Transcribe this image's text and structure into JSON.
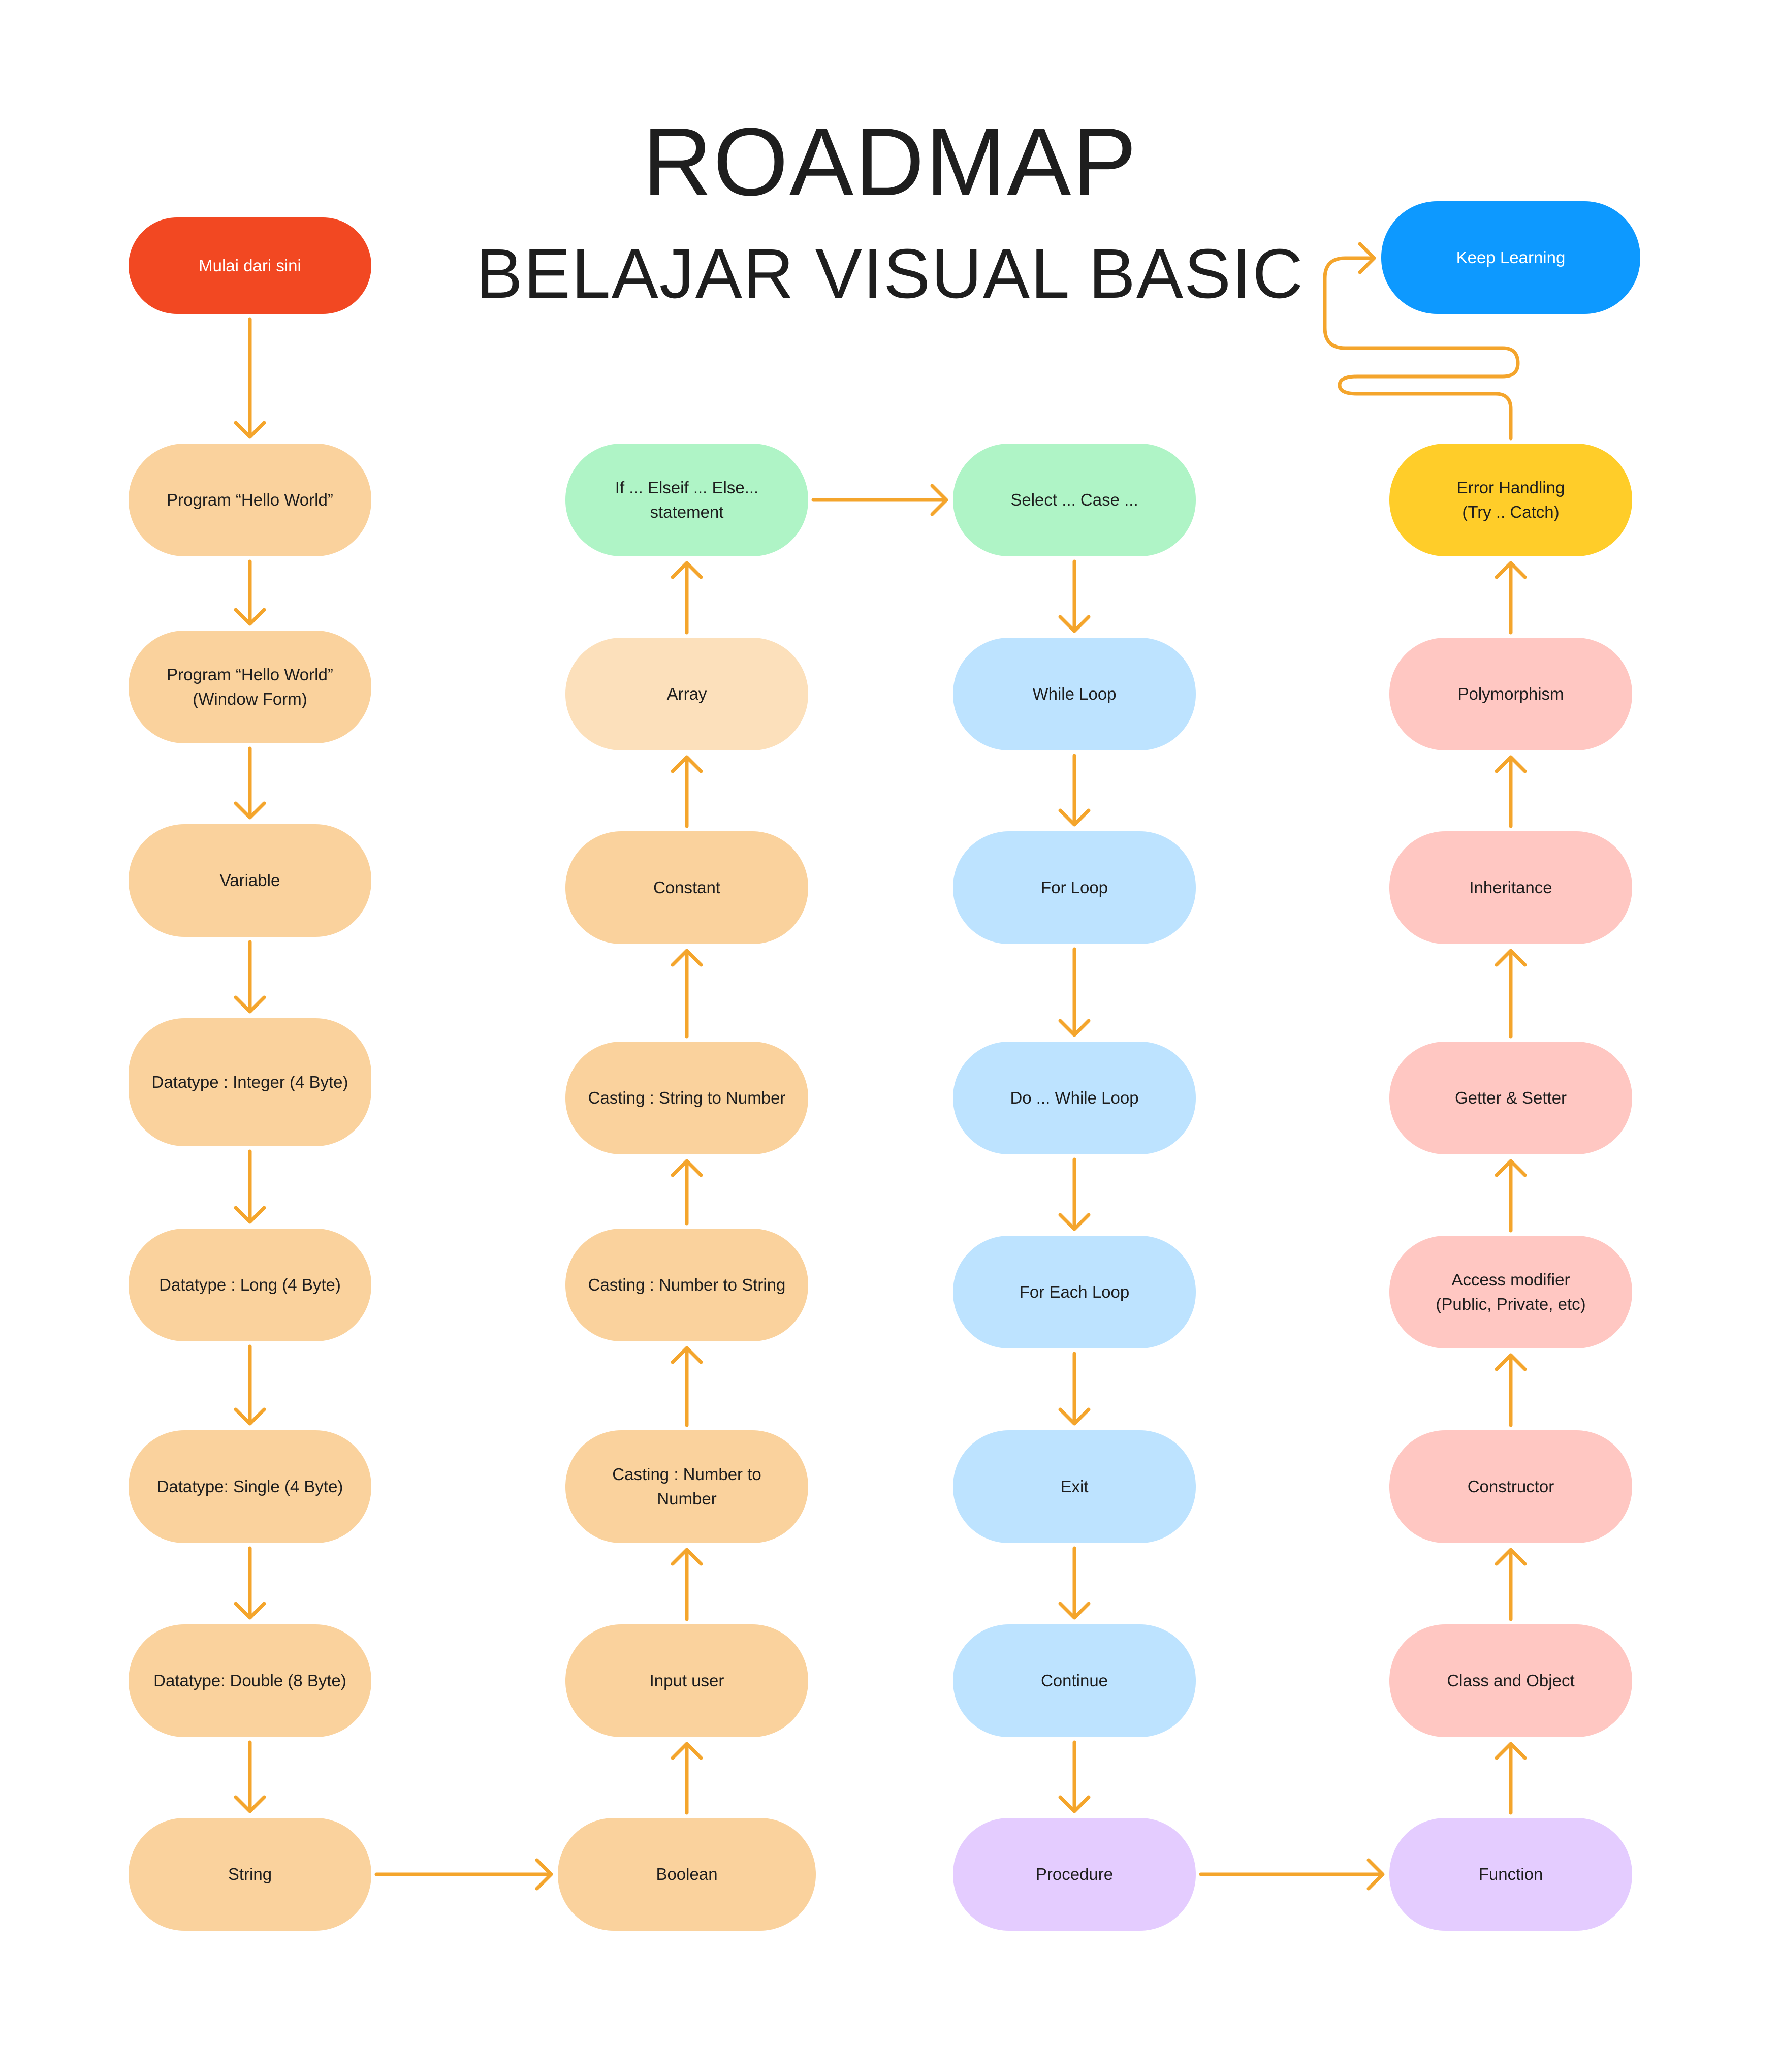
{
  "title": "ROADMAP",
  "subtitle": "BELAJAR VISUAL BASIC",
  "colors": {
    "arrow": "#f4a52c",
    "start": "#f24822",
    "basic": "#fad29d",
    "basic_light": "#fce0bb",
    "decision": "#aff4c6",
    "loop": "#bde3ff",
    "procedure": "#e4ccff",
    "oop": "#ffc7c2",
    "error": "#ffcd29",
    "finish": "#0d99ff"
  },
  "nodes": {
    "start": "Mulai dari sini",
    "hello": "Program “Hello World”",
    "hello_form": "Program “Hello World”\n(Window Form)",
    "variable": "Variable",
    "dt_integer": "Datatype : Integer (4 Byte)",
    "dt_long": "Datatype : Long (4 Byte)",
    "dt_single": "Datatype: Single (4 Byte)",
    "dt_double": "Datatype: Double (8 Byte)",
    "string": "String",
    "boolean": "Boolean",
    "input_user": "Input user",
    "cast_num_num": "Casting : Number to\nNumber",
    "cast_num_str": "Casting : Number to String",
    "cast_str_num": "Casting : String to Number",
    "constant": "Constant",
    "array": "Array",
    "if_else": "If ... Elseif ... Else...\nstatement",
    "select_case": "Select ... Case ...",
    "while_loop": "While Loop",
    "for_loop": "For Loop",
    "do_while": "Do ... While Loop",
    "for_each": "For Each Loop",
    "exit": "Exit",
    "continue": "Continue",
    "procedure": "Procedure",
    "function": "Function",
    "class_object": "Class and Object",
    "constructor": "Constructor",
    "access_modifier": "Access modifier\n(Public, Private, etc)",
    "getter_setter": "Getter & Setter",
    "inheritance": "Inheritance",
    "polymorphism": "Polymorphism",
    "error_handling": "Error Handling\n(Try .. Catch)",
    "keep_learning": "Keep Learning"
  }
}
